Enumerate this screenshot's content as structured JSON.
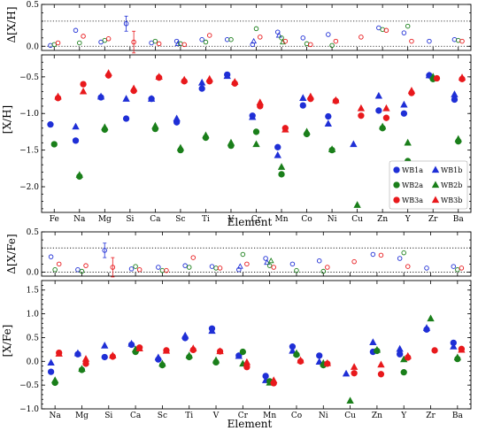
{
  "chart_data": [
    {
      "type": "scatter",
      "id": "top_delta",
      "ylabel": "Δ[X/H]",
      "ylim": [
        -0.05,
        0.5
      ],
      "yticks": [
        0.0,
        0.5
      ],
      "ytick_labels": [
        "0.0",
        "0.5"
      ],
      "reference_lines": [
        0.0,
        0.3
      ],
      "categories": [
        "Fe",
        "Na",
        "Mg",
        "Si",
        "Ca",
        "Sc",
        "Ti",
        "V",
        "Cr",
        "Mn",
        "Co",
        "Ni",
        "Cu",
        "Zn",
        "Y",
        "Zr",
        "Ba"
      ],
      "grid": false,
      "series": [
        {
          "key": "a",
          "color": "#1f2fd6",
          "marker": "circle",
          "fill": "none",
          "values": [
            0.01,
            0.19,
            0.05,
            0.27,
            0.04,
            0.06,
            0.08,
            0.08,
            0.02,
            0.17,
            0.1,
            0.14,
            null,
            0.22,
            0.16,
            0.06,
            0.08
          ],
          "errors": [
            0,
            0,
            0,
            0.09,
            0,
            0,
            0,
            0,
            0,
            0,
            0,
            0,
            0,
            0,
            0,
            0,
            0
          ]
        },
        {
          "key": "b",
          "color": "#1f2fd6",
          "marker": "triangle",
          "fill": "none",
          "values": [
            null,
            null,
            null,
            null,
            null,
            0.03,
            null,
            null,
            0.06,
            0.13,
            null,
            null,
            null,
            null,
            null,
            null,
            null
          ],
          "errors": [
            0,
            0,
            0,
            0,
            0,
            0,
            0,
            0,
            0,
            0,
            0,
            0,
            0,
            0,
            0,
            0,
            0
          ]
        },
        {
          "key": "c",
          "color": "#1a7f1a",
          "marker": "circle",
          "fill": "none",
          "values": [
            0.02,
            0.04,
            0.07,
            null,
            0.06,
            0.03,
            0.05,
            0.08,
            0.21,
            0.1,
            0.03,
            0.01,
            null,
            0.2,
            0.24,
            null,
            0.07
          ],
          "errors": [
            0,
            0,
            0,
            0,
            0,
            0,
            0,
            0,
            0,
            0,
            0,
            0,
            0,
            0,
            0,
            0,
            0
          ]
        },
        {
          "key": "d",
          "color": "#1a7f1a",
          "marker": "triangle",
          "fill": "none",
          "values": [
            null,
            null,
            null,
            null,
            null,
            null,
            null,
            null,
            null,
            0.05,
            null,
            null,
            null,
            null,
            null,
            null,
            null
          ],
          "errors": [
            0,
            0,
            0,
            0,
            0,
            0,
            0,
            0,
            0,
            0,
            0,
            0,
            0,
            0,
            0,
            0,
            0
          ]
        },
        {
          "key": "e",
          "color": "#e8191c",
          "marker": "circle",
          "fill": "none",
          "values": [
            0.04,
            0.12,
            0.09,
            0.05,
            0.03,
            0.02,
            0.13,
            null,
            0.11,
            0.06,
            0.02,
            0.06,
            0.11,
            0.19,
            0.06,
            null,
            0.06
          ],
          "errors": [
            0,
            0,
            0,
            0.13,
            0,
            0,
            0,
            0,
            0,
            0,
            0,
            0,
            0,
            0,
            0,
            0,
            0
          ]
        }
      ]
    },
    {
      "type": "scatter",
      "id": "top_abund",
      "ylabel": "[X/H]",
      "xlabel": "Element",
      "ylim": [
        -2.35,
        -0.2
      ],
      "yticks": [
        -2.0,
        -1.5,
        -1.0,
        -0.5
      ],
      "ytick_labels": [
        "−2.0",
        "−1.5",
        "−1.0",
        "−0.5"
      ],
      "categories": [
        "Fe",
        "Na",
        "Mg",
        "Si",
        "Ca",
        "Sc",
        "Ti",
        "V",
        "Cr",
        "Mn",
        "Co",
        "Ni",
        "Cu",
        "Zn",
        "Y",
        "Zr",
        "Ba"
      ],
      "grid": false,
      "legend": {
        "placement": "lower-right",
        "entries": [
          {
            "label": "WB1a",
            "color": "#1f2fd6",
            "marker": "circle"
          },
          {
            "label": "WB1b",
            "color": "#1f2fd6",
            "marker": "triangle"
          },
          {
            "label": "WB2a",
            "color": "#1a7f1a",
            "marker": "circle"
          },
          {
            "label": "WB2b",
            "color": "#1a7f1a",
            "marker": "triangle"
          },
          {
            "label": "WB3a",
            "color": "#e8191c",
            "marker": "circle"
          },
          {
            "label": "WB3b",
            "color": "#e8191c",
            "marker": "triangle"
          }
        ]
      },
      "series": [
        {
          "name": "WB1a",
          "color": "#1f2fd6",
          "marker": "circle",
          "offset": -0.15,
          "values": [
            -1.15,
            -1.37,
            -0.78,
            -1.07,
            -0.8,
            -1.12,
            -0.66,
            -0.47,
            -1.03,
            -1.46,
            -0.89,
            -1.04,
            null,
            -0.96,
            -1.0,
            -0.48,
            -0.81
          ]
        },
        {
          "name": "WB1b",
          "color": "#1f2fd6",
          "marker": "triangle",
          "offset": -0.15,
          "values": [
            null,
            -1.18,
            -0.77,
            -0.8,
            -0.8,
            -1.07,
            -0.58,
            -0.49,
            -1.05,
            -1.57,
            -0.79,
            -1.14,
            -1.42,
            -0.76,
            -0.88,
            -0.48,
            -0.74
          ]
        },
        {
          "name": "WB2a",
          "color": "#1a7f1a",
          "marker": "circle",
          "offset": 0.0,
          "values": [
            -1.42,
            -1.86,
            -1.22,
            null,
            -1.21,
            -1.5,
            -1.33,
            -1.44,
            -1.25,
            -1.83,
            -1.28,
            -1.5,
            null,
            -1.2,
            -1.65,
            -0.53,
            -1.38
          ]
        },
        {
          "name": "WB2b",
          "color": "#1a7f1a",
          "marker": "triangle",
          "offset": 0.0,
          "values": [
            null,
            -1.84,
            -1.19,
            null,
            -1.17,
            -1.47,
            -1.3,
            -1.4,
            -1.42,
            -1.73,
            -1.25,
            -1.49,
            -2.25,
            -1.18,
            -1.4,
            -0.5,
            -1.35
          ]
        },
        {
          "name": "WB3a",
          "color": "#e8191c",
          "marker": "circle",
          "offset": 0.15,
          "values": [
            -0.79,
            -0.6,
            -0.48,
            -0.69,
            -0.51,
            -0.56,
            -0.56,
            -0.59,
            -0.9,
            -1.2,
            -0.8,
            -0.83,
            -1.03,
            -1.06,
            -0.72,
            -0.52,
            -0.53
          ]
        },
        {
          "name": "WB3b",
          "color": "#e8191c",
          "marker": "triangle",
          "offset": 0.15,
          "values": [
            -0.77,
            -0.7,
            -0.45,
            -0.66,
            -0.5,
            -0.54,
            -0.53,
            -0.57,
            -0.85,
            -1.22,
            -0.77,
            -0.82,
            -0.93,
            -0.93,
            -0.69,
            null,
            -0.51
          ]
        }
      ]
    },
    {
      "type": "scatter",
      "id": "bottom_delta",
      "ylabel": "Δ[X/Fe]",
      "ylim": [
        -0.05,
        0.5
      ],
      "yticks": [
        0.0,
        0.5
      ],
      "ytick_labels": [
        "0.0",
        "0.5"
      ],
      "reference_lines": [
        0.0,
        0.3
      ],
      "categories": [
        "Na",
        "Mg",
        "Si",
        "Ca",
        "Sc",
        "Ti",
        "V",
        "Cr",
        "Mn",
        "Co",
        "Ni",
        "Cu",
        "Zn",
        "Y",
        "Zr",
        "Ba"
      ],
      "grid": false,
      "series": [
        {
          "key": "a",
          "color": "#1f2fd6",
          "marker": "circle",
          "fill": "none",
          "values": [
            0.19,
            0.03,
            0.27,
            0.04,
            0.06,
            0.08,
            0.07,
            0.03,
            0.17,
            0.1,
            0.14,
            null,
            0.22,
            0.17,
            0.05,
            0.07
          ],
          "errors": [
            0,
            0,
            0.09,
            0,
            0,
            0,
            0,
            0,
            0,
            0,
            0,
            0,
            0,
            0,
            0,
            0
          ]
        },
        {
          "key": "b",
          "color": "#1f2fd6",
          "marker": "triangle",
          "fill": "none",
          "values": [
            null,
            null,
            null,
            null,
            null,
            null,
            null,
            0.07,
            0.12,
            null,
            null,
            null,
            null,
            null,
            null,
            null
          ],
          "errors": [
            0,
            0,
            0,
            0,
            0,
            0,
            0,
            0,
            0,
            0,
            0,
            0,
            0,
            0,
            0,
            0
          ]
        },
        {
          "key": "c",
          "color": "#1a7f1a",
          "marker": "circle",
          "fill": "none",
          "values": [
            0.03,
            0.01,
            null,
            0.07,
            0.02,
            0.06,
            0.05,
            0.22,
            0.08,
            0.02,
            0.01,
            null,
            null,
            0.24,
            null,
            0.03
          ],
          "errors": [
            0,
            0,
            0,
            0,
            0,
            0,
            0,
            0,
            0,
            0,
            0,
            0,
            0,
            0,
            0,
            0
          ]
        },
        {
          "key": "d",
          "color": "#1a7f1a",
          "marker": "triangle",
          "fill": "none",
          "values": [
            null,
            null,
            null,
            null,
            null,
            null,
            null,
            null,
            0.14,
            null,
            null,
            null,
            null,
            null,
            null,
            null
          ],
          "errors": [
            0,
            0,
            0,
            0,
            0,
            0,
            0,
            0,
            0,
            0,
            0,
            0,
            0,
            0,
            0,
            0
          ]
        },
        {
          "key": "e",
          "color": "#e8191c",
          "marker": "circle",
          "fill": "none",
          "values": [
            0.1,
            0.08,
            0.06,
            0.03,
            0.02,
            0.18,
            0.05,
            0.1,
            0.06,
            null,
            0.06,
            0.13,
            0.21,
            0.07,
            null,
            0.05
          ],
          "errors": [
            0,
            0,
            0.12,
            0,
            0,
            0,
            0,
            0,
            0,
            0,
            0,
            0,
            0,
            0,
            0,
            0
          ]
        }
      ]
    },
    {
      "type": "scatter",
      "id": "bottom_abund",
      "ylabel": "[X/Fe]",
      "xlabel": "Element",
      "ylim": [
        -1.0,
        1.7
      ],
      "yticks": [
        -1.0,
        -0.5,
        0.0,
        0.5,
        1.0,
        1.5
      ],
      "ytick_labels": [
        "−1.0",
        "−0.5",
        "0.0",
        "0.5",
        "1.0",
        "1.5"
      ],
      "categories": [
        "Na",
        "Mg",
        "Si",
        "Ca",
        "Sc",
        "Ti",
        "V",
        "Cr",
        "Mn",
        "Co",
        "Ni",
        "Cu",
        "Zn",
        "Y",
        "Zr",
        "Ba"
      ],
      "grid": false,
      "series": [
        {
          "name": "WB1a",
          "color": "#1f2fd6",
          "marker": "circle",
          "offset": -0.15,
          "values": [
            -0.22,
            0.15,
            0.09,
            0.35,
            0.04,
            0.49,
            0.69,
            0.12,
            -0.31,
            0.31,
            0.12,
            null,
            0.2,
            0.15,
            0.67,
            0.39
          ]
        },
        {
          "name": "WB1b",
          "color": "#1f2fd6",
          "marker": "triangle",
          "offset": -0.15,
          "values": [
            -0.03,
            0.17,
            0.33,
            0.37,
            0.08,
            0.54,
            0.64,
            0.11,
            -0.4,
            0.22,
            -0.01,
            -0.26,
            0.4,
            0.26,
            0.7,
            0.31
          ]
        },
        {
          "name": "WB2a",
          "color": "#1a7f1a",
          "marker": "circle",
          "offset": 0.0,
          "values": [
            -0.45,
            -0.18,
            null,
            0.2,
            -0.08,
            0.09,
            -0.02,
            0.2,
            -0.42,
            0.14,
            -0.08,
            null,
            0.22,
            -0.23,
            null,
            0.05
          ]
        },
        {
          "name": "WB2b",
          "color": "#1a7f1a",
          "marker": "triangle",
          "offset": 0.0,
          "values": [
            -0.4,
            -0.16,
            null,
            0.25,
            -0.05,
            0.12,
            0.02,
            -0.05,
            -0.45,
            0.17,
            -0.04,
            -0.83,
            0.24,
            0.04,
            0.9,
            0.08
          ]
        },
        {
          "name": "WB3a",
          "color": "#e8191c",
          "marker": "circle",
          "offset": 0.15,
          "values": [
            0.18,
            -0.05,
            0.1,
            0.29,
            0.23,
            0.24,
            0.21,
            -0.12,
            -0.46,
            0.0,
            -0.05,
            -0.25,
            -0.27,
            0.08,
            0.23,
            0.26
          ]
        },
        {
          "name": "WB3b",
          "color": "#e8191c",
          "marker": "triangle",
          "offset": 0.15,
          "values": [
            0.16,
            0.05,
            0.12,
            0.27,
            0.22,
            0.27,
            0.21,
            -0.02,
            -0.4,
            0.02,
            -0.04,
            -0.12,
            -0.07,
            0.11,
            null,
            0.24
          ]
        }
      ]
    }
  ]
}
